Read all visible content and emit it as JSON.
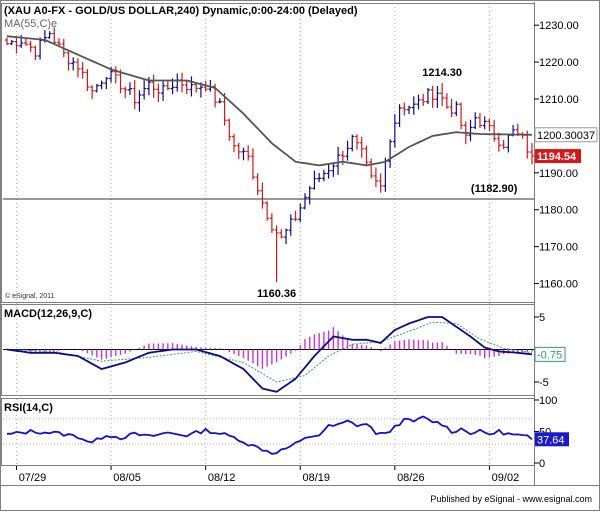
{
  "colors": {
    "up_bar": "#0a0a8c",
    "down_bar": "#d01818",
    "ma_line": "#555555",
    "macd_line": "#0a0a8c",
    "signal_line": "#2e9e6e",
    "histogram": "#cc33cc",
    "rsi_line": "#1212cc",
    "current_price_bg": "#d81818",
    "grid_line": "#b0b0b0",
    "axis_text": "#000000"
  },
  "chart_data": [
    {
      "type": "ohlc",
      "title": "(XAU A0-FX - GOLD/US DOLLAR,240) Dynamic,0:00-24:00 (Delayed)",
      "indicator_label": "MA(55,C)e",
      "copyright": "© eSignal, 2011",
      "y_ticks": [
        "1230.00",
        "1220.00",
        "1210.00",
        "1200.00",
        "1190.00",
        "1180.00",
        "1170.00",
        "1160.00"
      ],
      "ylim": [
        1155,
        1236
      ],
      "x_ticks": [
        "07/29",
        "08/05",
        "08/12",
        "08/19",
        "08/26",
        "09/02"
      ],
      "x_tick_positions": [
        2,
        22,
        42,
        62,
        82,
        102
      ],
      "bars": 112,
      "price_anchors": [
        [
          0,
          1225
        ],
        [
          3,
          1226
        ],
        [
          6,
          1223
        ],
        [
          9,
          1228
        ],
        [
          12,
          1222
        ],
        [
          15,
          1219
        ],
        [
          18,
          1212
        ],
        [
          21,
          1217
        ],
        [
          24,
          1214
        ],
        [
          27,
          1210
        ],
        [
          30,
          1214
        ],
        [
          33,
          1212
        ],
        [
          36,
          1215
        ],
        [
          39,
          1213
        ],
        [
          42,
          1214
        ],
        [
          45,
          1208
        ],
        [
          48,
          1197
        ],
        [
          51,
          1194
        ],
        [
          54,
          1182
        ],
        [
          56,
          1176
        ],
        [
          58,
          1172
        ],
        [
          61,
          1178
        ],
        [
          64,
          1186
        ],
        [
          67,
          1190
        ],
        [
          70,
          1194
        ],
        [
          73,
          1199
        ],
        [
          75,
          1195
        ],
        [
          77,
          1188
        ],
        [
          79,
          1186
        ],
        [
          81,
          1200
        ],
        [
          83,
          1208
        ],
        [
          86,
          1208
        ],
        [
          89,
          1211
        ],
        [
          91,
          1212
        ],
        [
          93,
          1208
        ],
        [
          95,
          1207
        ],
        [
          97,
          1199
        ],
        [
          99,
          1205
        ],
        [
          101,
          1203
        ],
        [
          103,
          1200
        ],
        [
          105,
          1198
        ],
        [
          107,
          1201
        ],
        [
          109,
          1199
        ],
        [
          111,
          1194
        ]
      ],
      "ma_anchors": [
        [
          0,
          1227
        ],
        [
          8,
          1226
        ],
        [
          15,
          1222
        ],
        [
          22,
          1218
        ],
        [
          30,
          1215
        ],
        [
          38,
          1215
        ],
        [
          44,
          1213
        ],
        [
          50,
          1206
        ],
        [
          56,
          1198
        ],
        [
          61,
          1193
        ],
        [
          66,
          1192
        ],
        [
          71,
          1193
        ],
        [
          76,
          1192
        ],
        [
          80,
          1193
        ],
        [
          85,
          1197
        ],
        [
          90,
          1200
        ],
        [
          95,
          1201
        ],
        [
          100,
          1200.5
        ],
        [
          111,
          1200.3
        ]
      ],
      "annotations": [
        {
          "text": "1214.30",
          "bar": 92,
          "value": 1214.3,
          "position": "above"
        },
        {
          "text": "1160.36",
          "bar": 57,
          "value": 1160.36,
          "position": "below"
        },
        {
          "text": "(1182.90)",
          "bar": 103,
          "value": 1182.9,
          "position": "above"
        }
      ],
      "horizontal_line": 1182.9,
      "current_ma_label": "1200.30037",
      "current_ma_value": 1200.30037,
      "current_price_label": "1194.54",
      "current_price_value": 1194.54
    },
    {
      "type": "macd",
      "title": "MACD(12,26,9,C)",
      "y_ticks": [
        "5",
        "-5"
      ],
      "ylim": [
        -7,
        7
      ],
      "macd_anchors": [
        [
          0,
          0
        ],
        [
          5,
          -0.5
        ],
        [
          10,
          -0.5
        ],
        [
          15,
          -1
        ],
        [
          20,
          -3
        ],
        [
          25,
          -2
        ],
        [
          30,
          -0.5
        ],
        [
          35,
          0
        ],
        [
          40,
          0
        ],
        [
          45,
          -1
        ],
        [
          50,
          -3
        ],
        [
          54,
          -6
        ],
        [
          57,
          -6.5
        ],
        [
          61,
          -4.5
        ],
        [
          65,
          -1
        ],
        [
          69,
          2
        ],
        [
          73,
          1.5
        ],
        [
          76,
          1.5
        ],
        [
          79,
          1
        ],
        [
          82,
          3
        ],
        [
          85,
          4
        ],
        [
          89,
          5
        ],
        [
          92,
          5
        ],
        [
          95,
          3.5
        ],
        [
          98,
          2
        ],
        [
          101,
          0.3
        ],
        [
          104,
          -0.3
        ],
        [
          108,
          -0.5
        ],
        [
          111,
          -0.75
        ]
      ],
      "signal_anchors": [
        [
          0,
          0
        ],
        [
          10,
          -0.3
        ],
        [
          20,
          -1.8
        ],
        [
          30,
          -1.2
        ],
        [
          40,
          -0.3
        ],
        [
          50,
          -2
        ],
        [
          57,
          -5
        ],
        [
          63,
          -4
        ],
        [
          68,
          -1
        ],
        [
          73,
          0.8
        ],
        [
          79,
          1.2
        ],
        [
          85,
          2.8
        ],
        [
          90,
          4.2
        ],
        [
          95,
          4
        ],
        [
          100,
          1.6
        ],
        [
          105,
          0.2
        ],
        [
          111,
          -0.5
        ]
      ],
      "current_label": "-0.75",
      "current_value": -0.75
    },
    {
      "type": "rsi",
      "title": "RSI(14,C)",
      "y_ticks": [
        "100",
        "50",
        "0"
      ],
      "ylim": [
        0,
        100
      ],
      "reference_levels": [
        70,
        30
      ],
      "rsi_anchors": [
        [
          0,
          45
        ],
        [
          5,
          50
        ],
        [
          10,
          48
        ],
        [
          15,
          42
        ],
        [
          18,
          32
        ],
        [
          21,
          45
        ],
        [
          24,
          40
        ],
        [
          27,
          46
        ],
        [
          30,
          42
        ],
        [
          34,
          48
        ],
        [
          38,
          44
        ],
        [
          42,
          52
        ],
        [
          46,
          45
        ],
        [
          49,
          38
        ],
        [
          51,
          30
        ],
        [
          54,
          22
        ],
        [
          56,
          16
        ],
        [
          58,
          20
        ],
        [
          61,
          30
        ],
        [
          64,
          42
        ],
        [
          66,
          45
        ],
        [
          68,
          58
        ],
        [
          70,
          60
        ],
        [
          72,
          66
        ],
        [
          74,
          60
        ],
        [
          76,
          62
        ],
        [
          78,
          48
        ],
        [
          80,
          45
        ],
        [
          82,
          58
        ],
        [
          84,
          68
        ],
        [
          86,
          66
        ],
        [
          88,
          72
        ],
        [
          90,
          66
        ],
        [
          92,
          62
        ],
        [
          94,
          50
        ],
        [
          96,
          54
        ],
        [
          98,
          48
        ],
        [
          100,
          50
        ],
        [
          102,
          46
        ],
        [
          104,
          50
        ],
        [
          106,
          46
        ],
        [
          108,
          44
        ],
        [
          110,
          42
        ],
        [
          111,
          37.64
        ]
      ],
      "current_label": "37.64",
      "current_value": 37.64
    }
  ],
  "footer": {
    "published": "Published by eSignal - www.esignal.com"
  }
}
